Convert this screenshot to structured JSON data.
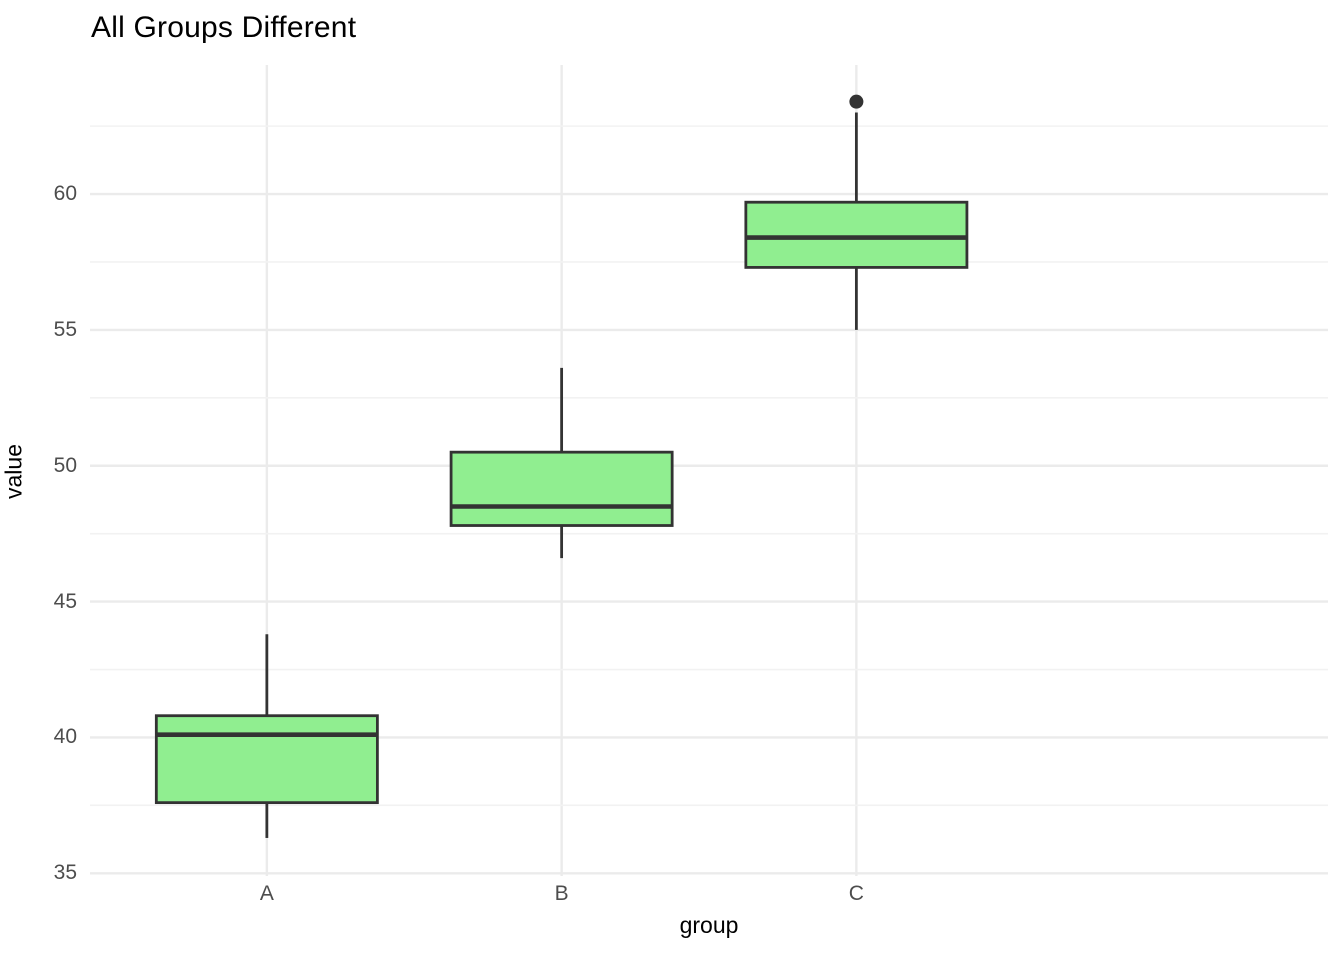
{
  "chart_data": {
    "type": "boxplot",
    "title": "All Groups Different",
    "xlabel": "group",
    "ylabel": "value",
    "categories": [
      "A",
      "B",
      "C"
    ],
    "y_ticks": [
      35,
      40,
      45,
      50,
      55,
      60
    ],
    "y_minor_ticks": [
      37.5,
      42.5,
      47.5,
      52.5,
      57.5,
      62.5
    ],
    "ylim": [
      34.9,
      64.75
    ],
    "grid": "major and minor horizontal lines, one vertical major line per category, no axis lines, no tick marks",
    "legend_position": "none",
    "series": [
      {
        "group": "A",
        "whisker_low": 36.3,
        "q1": 37.6,
        "median": 40.1,
        "q3": 40.8,
        "whisker_high": 43.8,
        "outliers": []
      },
      {
        "group": "B",
        "whisker_low": 46.6,
        "q1": 47.8,
        "median": 48.5,
        "q3": 50.5,
        "whisker_high": 53.6,
        "outliers": []
      },
      {
        "group": "C",
        "whisker_low": 55.0,
        "q1": 57.3,
        "median": 58.4,
        "q3": 59.7,
        "whisker_high": 63.0,
        "outliers": [
          63.4
        ]
      }
    ],
    "colors": {
      "box_fill": "#90EE90",
      "box_stroke": "#333333",
      "median_stroke": "#333333",
      "whisker_stroke": "#333333",
      "outlier_fill": "#333333",
      "grid_major": "#EBEBEB",
      "grid_minor": "#F2F2F2",
      "tick_label": "#4D4D4D",
      "title_text": "#000000",
      "background": "#FFFFFF"
    }
  }
}
